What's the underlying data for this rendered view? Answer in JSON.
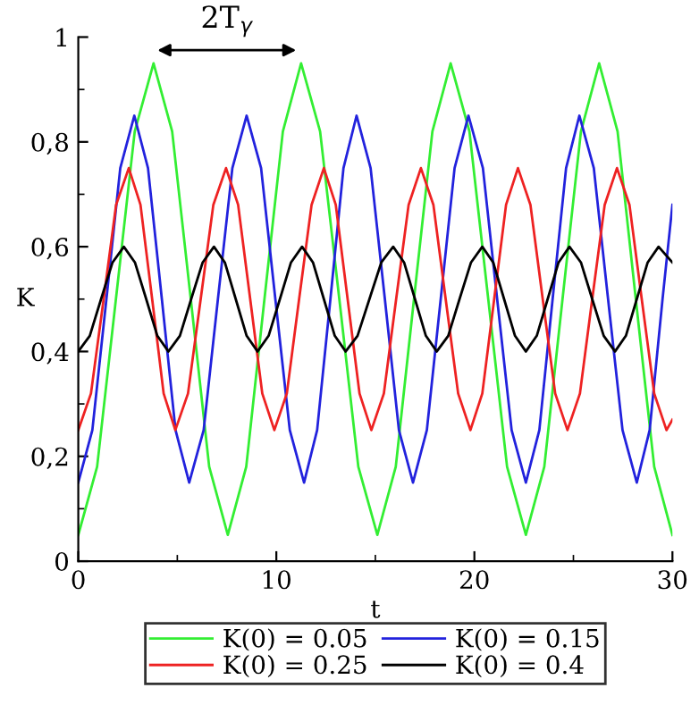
{
  "chart_data": {
    "type": "line",
    "xlabel": "t",
    "ylabel": "K",
    "xlim": [
      0,
      30
    ],
    "xticks": [
      0,
      10,
      20,
      30
    ],
    "ylim": [
      0,
      1
    ],
    "yticks": [
      0,
      {
        "value": 0.2,
        "label": "0,2"
      },
      {
        "value": 0.4,
        "label": "0,4"
      },
      {
        "value": 0.6,
        "label": "0,6"
      },
      {
        "value": 0.8,
        "label": "0,8"
      },
      1
    ],
    "grid": false,
    "legend": "bottom",
    "line_style": "solid",
    "marker": "none",
    "annotations": [
      "2T$_{γ}$"
    ],
    "series": [
      {
        "name": "K(0) = 0.05",
        "color": "#33ee33",
        "x": [
          0,
          0.95,
          1.9,
          2.85,
          3.8,
          4.74,
          5.68,
          6.61,
          7.55,
          8.48,
          9.4,
          10.33,
          11.25,
          12.21,
          13.18,
          14.14,
          15.1,
          16.03,
          16.95,
          17.88,
          18.8,
          19.75,
          20.7,
          21.65,
          22.6,
          23.53,
          24.45,
          25.38,
          26.3,
          27.23,
          28.15,
          29.08,
          30
        ],
        "values": [
          0.05,
          0.18,
          0.5,
          0.82,
          0.95,
          0.82,
          0.5,
          0.18,
          0.05,
          0.18,
          0.5,
          0.82,
          0.95,
          0.82,
          0.5,
          0.18,
          0.05,
          0.18,
          0.5,
          0.82,
          0.95,
          0.82,
          0.5,
          0.18,
          0.05,
          0.18,
          0.5,
          0.82,
          0.95,
          0.82,
          0.5,
          0.18,
          0.05
        ]
      },
      {
        "name": "K(0) = 0.15",
        "color": "#2222dd",
        "x": [
          0,
          0.71,
          1.42,
          2.12,
          2.83,
          3.52,
          4.22,
          4.91,
          5.6,
          6.33,
          7.05,
          7.78,
          8.5,
          9.23,
          9.95,
          10.68,
          11.4,
          12.06,
          12.73,
          13.39,
          14.05,
          14.76,
          15.48,
          16.19,
          16.9,
          17.6,
          18.3,
          19.0,
          19.7,
          20.43,
          21.15,
          21.88,
          22.6,
          23.28,
          23.95,
          24.63,
          25.3,
          26.03,
          26.75,
          27.48,
          28.2,
          28.85,
          29.5,
          30
        ],
        "values": [
          0.15,
          0.25,
          0.5,
          0.75,
          0.85,
          0.75,
          0.5,
          0.25,
          0.15,
          0.25,
          0.5,
          0.75,
          0.85,
          0.75,
          0.5,
          0.25,
          0.15,
          0.25,
          0.5,
          0.75,
          0.85,
          0.75,
          0.5,
          0.25,
          0.15,
          0.25,
          0.5,
          0.75,
          0.85,
          0.75,
          0.5,
          0.25,
          0.15,
          0.25,
          0.5,
          0.75,
          0.85,
          0.75,
          0.5,
          0.25,
          0.15,
          0.25,
          0.5,
          0.68
        ]
      },
      {
        "name": "K(0) = 0.25",
        "color": "#ee2222",
        "x": [
          0,
          0.64,
          1.28,
          1.91,
          2.55,
          3.14,
          3.73,
          4.31,
          4.9,
          5.54,
          6.18,
          6.82,
          7.46,
          8.07,
          8.68,
          9.29,
          9.9,
          10.53,
          11.15,
          11.78,
          12.4,
          13.0,
          13.6,
          14.2,
          14.8,
          15.43,
          16.05,
          16.68,
          17.3,
          17.93,
          18.55,
          19.18,
          19.8,
          20.4,
          21.0,
          21.6,
          22.2,
          22.83,
          23.45,
          24.08,
          24.7,
          25.33,
          25.95,
          26.58,
          27.2,
          27.83,
          28.45,
          29.08,
          29.7,
          30
        ],
        "values": [
          0.25,
          0.32,
          0.5,
          0.68,
          0.75,
          0.68,
          0.5,
          0.32,
          0.25,
          0.32,
          0.5,
          0.68,
          0.75,
          0.68,
          0.5,
          0.32,
          0.25,
          0.32,
          0.5,
          0.68,
          0.75,
          0.68,
          0.5,
          0.32,
          0.25,
          0.32,
          0.5,
          0.68,
          0.75,
          0.68,
          0.5,
          0.32,
          0.25,
          0.32,
          0.5,
          0.68,
          0.75,
          0.68,
          0.5,
          0.32,
          0.25,
          0.32,
          0.5,
          0.68,
          0.75,
          0.68,
          0.5,
          0.32,
          0.25,
          0.27
        ]
      },
      {
        "name": "K(0) = 0.4",
        "color": "#000000",
        "x": [
          0,
          0.58,
          1.15,
          1.73,
          2.3,
          2.86,
          3.43,
          3.99,
          4.55,
          5.13,
          5.7,
          6.28,
          6.85,
          7.4,
          7.95,
          8.5,
          9.05,
          9.61,
          10.18,
          10.74,
          11.3,
          11.85,
          12.4,
          12.95,
          13.5,
          14.1,
          14.7,
          15.3,
          15.9,
          16.45,
          17.0,
          17.55,
          18.1,
          18.68,
          19.25,
          19.83,
          20.4,
          20.95,
          21.5,
          22.05,
          22.6,
          23.15,
          23.7,
          24.25,
          24.8,
          25.38,
          25.95,
          26.53,
          27.1,
          27.65,
          28.2,
          28.75,
          29.3,
          30
        ],
        "values": [
          0.4,
          0.43,
          0.5,
          0.57,
          0.6,
          0.57,
          0.5,
          0.43,
          0.4,
          0.43,
          0.5,
          0.57,
          0.6,
          0.57,
          0.5,
          0.43,
          0.4,
          0.43,
          0.5,
          0.57,
          0.6,
          0.57,
          0.5,
          0.43,
          0.4,
          0.43,
          0.5,
          0.57,
          0.6,
          0.57,
          0.5,
          0.43,
          0.4,
          0.43,
          0.5,
          0.57,
          0.6,
          0.57,
          0.5,
          0.43,
          0.4,
          0.43,
          0.5,
          0.57,
          0.6,
          0.57,
          0.5,
          0.43,
          0.4,
          0.43,
          0.5,
          0.57,
          0.6,
          0.57
        ]
      }
    ]
  }
}
